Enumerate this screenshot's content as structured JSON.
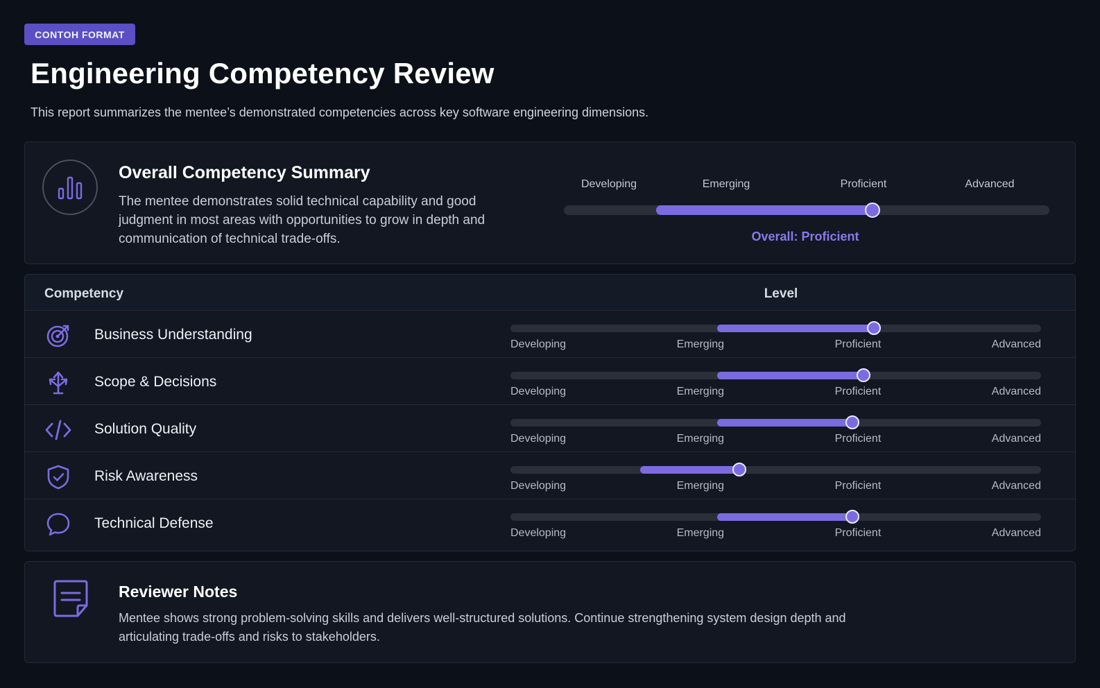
{
  "badge": "CONTOH FORMAT",
  "title": "Engineering Competency Review",
  "subtitle": "This report summarizes the mentee’s demonstrated competencies across key software engineering dimensions.",
  "colors": {
    "accent": "#7c6be0",
    "badge": "#5b4fc4",
    "track": "#2a2f3a",
    "background": "#0c1019"
  },
  "levels": [
    "Developing",
    "Emerging",
    "Proficient",
    "Advanced"
  ],
  "summary": {
    "icon": "bar-chart-icon",
    "heading": "Overall Competency Summary",
    "description": "The mentee demonstrates solid technical capability and good judgment in most areas with opportunities to grow in depth and communication of technical trade-offs.",
    "scale_labels": [
      "Developing",
      "Emerging",
      "Proficient",
      "Advanced"
    ],
    "range_start": 0.19,
    "level_value": 0.635,
    "overall_text": "Overall: Proficient"
  },
  "table": {
    "header_competency": "Competency",
    "header_level": "Level",
    "rows": [
      {
        "name": "Business Understanding",
        "icon": "target-icon",
        "range_start": 0.39,
        "value": 0.685
      },
      {
        "name": "Scope & Decisions",
        "icon": "split-arrows-icon",
        "range_start": 0.39,
        "value": 0.665
      },
      {
        "name": "Solution Quality",
        "icon": "code-icon",
        "range_start": 0.39,
        "value": 0.645
      },
      {
        "name": "Risk Awareness",
        "icon": "shield-check-icon",
        "range_start": 0.245,
        "value": 0.432
      },
      {
        "name": "Technical Defense",
        "icon": "chat-bubble-icon",
        "range_start": 0.39,
        "value": 0.645
      }
    ]
  },
  "notes": {
    "icon": "note-icon",
    "heading": "Reviewer Notes",
    "text": "Mentee shows strong problem-solving skills and delivers well-structured solutions. Continue strengthening system design depth and articulating trade-offs and risks to stakeholders."
  }
}
